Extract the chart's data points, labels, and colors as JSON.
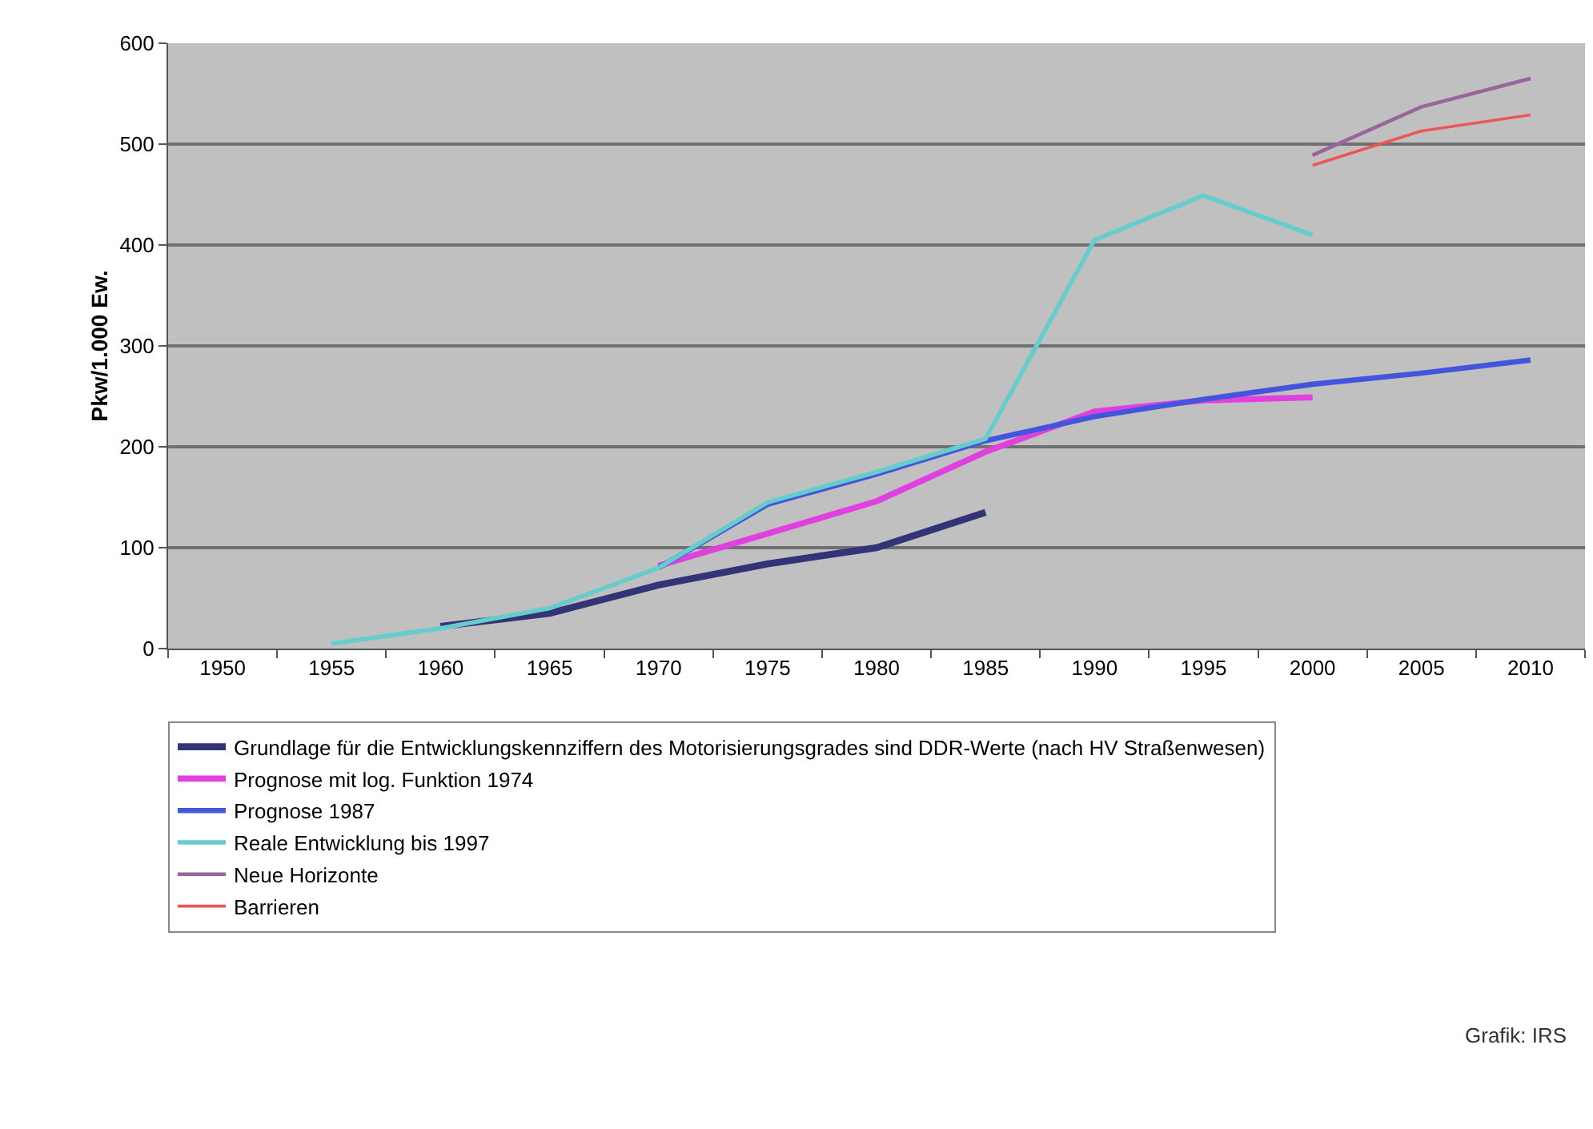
{
  "chart_data": {
    "type": "line",
    "ylabel": "Pkw/1.000 Ew.",
    "categories": [
      "1950",
      "1955",
      "1960",
      "1965",
      "1970",
      "1975",
      "1980",
      "1985",
      "1990",
      "1995",
      "2000",
      "2005",
      "2010"
    ],
    "series": [
      {
        "name": "Grundlage für die Entwicklungskennziffern des Motorisierungsgrades sind DDR-Werte (nach HV Straßenwesen)",
        "color": "#333377",
        "values": [
          null,
          null,
          22,
          35,
          63,
          84,
          100,
          135,
          null,
          null,
          null,
          null,
          null
        ]
      },
      {
        "name": "Prognose mit log. Funktion 1974",
        "color": "#e040e0",
        "values": [
          null,
          null,
          null,
          null,
          82,
          114,
          146,
          195,
          235,
          246,
          249,
          null,
          null
        ]
      },
      {
        "name": "Prognose 1987",
        "color": "#4455dd",
        "values": [
          null,
          null,
          null,
          null,
          80,
          143,
          173,
          206,
          230,
          247,
          262,
          273,
          286
        ]
      },
      {
        "name": "Reale Entwicklung bis 1997",
        "color": "#66cccc",
        "values": [
          null,
          5,
          20,
          40,
          80,
          145,
          175,
          208,
          405,
          449,
          410,
          null,
          null
        ]
      },
      {
        "name": "Neue Horizonte",
        "color": "#996699",
        "values": [
          null,
          null,
          null,
          null,
          null,
          null,
          null,
          null,
          null,
          null,
          489,
          537,
          565
        ]
      },
      {
        "name": "Barrieren",
        "color": "#ee5555",
        "values": [
          null,
          null,
          null,
          null,
          null,
          null,
          null,
          null,
          null,
          null,
          479,
          513,
          529
        ]
      }
    ],
    "ylim": [
      0,
      600
    ],
    "yticks": [
      0,
      100,
      200,
      300,
      400,
      500,
      600
    ],
    "grid": "y",
    "legend": "bottom",
    "marker": "none",
    "line_style": "solid",
    "annotations": [
      "Grafik: IRS"
    ]
  }
}
